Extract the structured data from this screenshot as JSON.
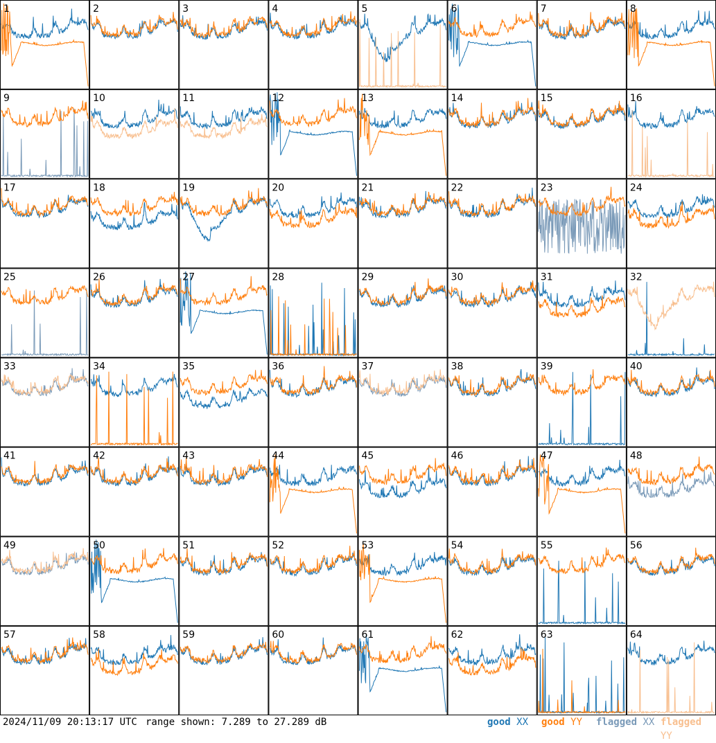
{
  "footer": {
    "timestamp": "2024/11/09 20:13:17 UTC",
    "range_text": "range shown: 7.289 to 27.289 dB"
  },
  "legend": [
    {
      "prefix": "good ",
      "pol": "XX",
      "color": "#1f77b4"
    },
    {
      "prefix": "good ",
      "pol": "YY",
      "color": "#ff7f0e"
    },
    {
      "prefix": "flagged ",
      "pol": "XX",
      "color": "#7a9ab8"
    },
    {
      "prefix": "flagged ",
      "pol": "YY",
      "color": "#f8bf8f"
    }
  ],
  "colors": {
    "good_xx": "#1f77b4",
    "good_yy": "#ff7f0e",
    "flagged_xx": "#7a9ab8",
    "flagged_yy": "#f8bf8f"
  },
  "chart_data": {
    "type": "line",
    "layout": "8x8 small multiples",
    "ylim": [
      7.289,
      27.289
    ],
    "yunits": "dB",
    "panels": [
      {
        "id": "1",
        "xx": "good",
        "yy": "good",
        "shape": {
          "xx": "normal",
          "yy": "droop"
        }
      },
      {
        "id": "2",
        "xx": "good",
        "yy": "good",
        "shape": {
          "xx": "normal",
          "yy": "normal"
        }
      },
      {
        "id": "3",
        "xx": "good",
        "yy": "good",
        "shape": {
          "xx": "normal",
          "yy": "normal"
        }
      },
      {
        "id": "4",
        "xx": "good",
        "yy": "good",
        "shape": {
          "xx": "normal",
          "yy": "normal"
        }
      },
      {
        "id": "5",
        "xx": "good",
        "yy": "flagged",
        "shape": {
          "xx": "dip",
          "yy": "dead"
        }
      },
      {
        "id": "6",
        "xx": "good",
        "yy": "good",
        "shape": {
          "xx": "droop",
          "yy": "normal"
        }
      },
      {
        "id": "7",
        "xx": "good",
        "yy": "good",
        "shape": {
          "xx": "normal",
          "yy": "normal"
        }
      },
      {
        "id": "8",
        "xx": "good",
        "yy": "good",
        "shape": {
          "xx": "normal",
          "yy": "droop"
        }
      },
      {
        "id": "9",
        "xx": "flagged",
        "yy": "good",
        "shape": {
          "xx": "dead",
          "yy": "normal"
        }
      },
      {
        "id": "10",
        "xx": "good",
        "yy": "flagged",
        "shape": {
          "xx": "normal",
          "yy": "low"
        }
      },
      {
        "id": "11",
        "xx": "good",
        "yy": "flagged",
        "shape": {
          "xx": "normal",
          "yy": "low"
        }
      },
      {
        "id": "12",
        "xx": "good",
        "yy": "good",
        "shape": {
          "xx": "droop",
          "yy": "normal"
        }
      },
      {
        "id": "13",
        "xx": "good",
        "yy": "good",
        "shape": {
          "xx": "normal",
          "yy": "droop"
        }
      },
      {
        "id": "14",
        "xx": "good",
        "yy": "good",
        "shape": {
          "xx": "normal",
          "yy": "normal"
        }
      },
      {
        "id": "15",
        "xx": "good",
        "yy": "good",
        "shape": {
          "xx": "normal",
          "yy": "normal"
        }
      },
      {
        "id": "16",
        "xx": "good",
        "yy": "flagged",
        "shape": {
          "xx": "normal",
          "yy": "dead"
        }
      },
      {
        "id": "17",
        "xx": "good",
        "yy": "good",
        "shape": {
          "xx": "normal",
          "yy": "normal"
        }
      },
      {
        "id": "18",
        "xx": "good",
        "yy": "good",
        "shape": {
          "xx": "low",
          "yy": "normal"
        }
      },
      {
        "id": "19",
        "xx": "good",
        "yy": "good",
        "shape": {
          "xx": "dip",
          "yy": "normal"
        }
      },
      {
        "id": "20",
        "xx": "good",
        "yy": "good",
        "shape": {
          "xx": "normal",
          "yy": "low"
        }
      },
      {
        "id": "21",
        "xx": "good",
        "yy": "good",
        "shape": {
          "xx": "normal",
          "yy": "normal"
        }
      },
      {
        "id": "22",
        "xx": "good",
        "yy": "good",
        "shape": {
          "xx": "normal",
          "yy": "normal"
        }
      },
      {
        "id": "23",
        "xx": "flagged",
        "yy": "good",
        "shape": {
          "xx": "noise",
          "yy": "normal"
        }
      },
      {
        "id": "24",
        "xx": "good",
        "yy": "good",
        "shape": {
          "xx": "normal",
          "yy": "low"
        }
      },
      {
        "id": "25",
        "xx": "flagged",
        "yy": "good",
        "shape": {
          "xx": "dead",
          "yy": "normal"
        }
      },
      {
        "id": "26",
        "xx": "good",
        "yy": "good",
        "shape": {
          "xx": "normal",
          "yy": "normal"
        }
      },
      {
        "id": "27",
        "xx": "good",
        "yy": "good",
        "shape": {
          "xx": "droop",
          "yy": "normal"
        }
      },
      {
        "id": "28",
        "xx": "good",
        "yy": "good",
        "shape": {
          "xx": "dead",
          "yy": "dead"
        }
      },
      {
        "id": "29",
        "xx": "good",
        "yy": "good",
        "shape": {
          "xx": "normal",
          "yy": "normal"
        }
      },
      {
        "id": "30",
        "xx": "good",
        "yy": "good",
        "shape": {
          "xx": "normal",
          "yy": "normal"
        }
      },
      {
        "id": "31",
        "xx": "good",
        "yy": "good",
        "shape": {
          "xx": "normal",
          "yy": "low"
        }
      },
      {
        "id": "32",
        "xx": "good",
        "yy": "flagged",
        "shape": {
          "xx": "dead",
          "yy": "dip"
        }
      },
      {
        "id": "33",
        "xx": "flagged",
        "yy": "flagged",
        "shape": {
          "xx": "normal",
          "yy": "normal"
        }
      },
      {
        "id": "34",
        "xx": "good",
        "yy": "good",
        "shape": {
          "xx": "normal",
          "yy": "dead"
        }
      },
      {
        "id": "35",
        "xx": "good",
        "yy": "good",
        "shape": {
          "xx": "low",
          "yy": "normal"
        }
      },
      {
        "id": "36",
        "xx": "good",
        "yy": "good",
        "shape": {
          "xx": "normal",
          "yy": "normal"
        }
      },
      {
        "id": "37",
        "xx": "flagged",
        "yy": "flagged",
        "shape": {
          "xx": "normal",
          "yy": "normal"
        }
      },
      {
        "id": "38",
        "xx": "good",
        "yy": "good",
        "shape": {
          "xx": "normal",
          "yy": "normal"
        }
      },
      {
        "id": "39",
        "xx": "good",
        "yy": "good",
        "shape": {
          "xx": "dead",
          "yy": "normal"
        }
      },
      {
        "id": "40",
        "xx": "good",
        "yy": "good",
        "shape": {
          "xx": "normal",
          "yy": "normal"
        }
      },
      {
        "id": "41",
        "xx": "good",
        "yy": "good",
        "shape": {
          "xx": "normal",
          "yy": "normal"
        }
      },
      {
        "id": "42",
        "xx": "good",
        "yy": "good",
        "shape": {
          "xx": "normal",
          "yy": "normal"
        }
      },
      {
        "id": "43",
        "xx": "good",
        "yy": "good",
        "shape": {
          "xx": "normal",
          "yy": "normal"
        }
      },
      {
        "id": "44",
        "xx": "good",
        "yy": "good",
        "shape": {
          "xx": "normal",
          "yy": "droop"
        }
      },
      {
        "id": "45",
        "xx": "good",
        "yy": "good",
        "shape": {
          "xx": "low",
          "yy": "normal"
        }
      },
      {
        "id": "46",
        "xx": "good",
        "yy": "good",
        "shape": {
          "xx": "normal",
          "yy": "normal"
        }
      },
      {
        "id": "47",
        "xx": "good",
        "yy": "good",
        "shape": {
          "xx": "normal",
          "yy": "droop"
        }
      },
      {
        "id": "48",
        "xx": "flagged",
        "yy": "good",
        "shape": {
          "xx": "low",
          "yy": "normal"
        }
      },
      {
        "id": "49",
        "xx": "flagged",
        "yy": "flagged",
        "shape": {
          "xx": "normal",
          "yy": "normal"
        }
      },
      {
        "id": "50",
        "xx": "good",
        "yy": "good",
        "shape": {
          "xx": "droop",
          "yy": "normal"
        }
      },
      {
        "id": "51",
        "xx": "good",
        "yy": "good",
        "shape": {
          "xx": "normal",
          "yy": "normal"
        }
      },
      {
        "id": "52",
        "xx": "good",
        "yy": "good",
        "shape": {
          "xx": "normal",
          "yy": "normal"
        }
      },
      {
        "id": "53",
        "xx": "good",
        "yy": "good",
        "shape": {
          "xx": "normal",
          "yy": "droop"
        }
      },
      {
        "id": "54",
        "xx": "good",
        "yy": "good",
        "shape": {
          "xx": "normal",
          "yy": "normal"
        }
      },
      {
        "id": "55",
        "xx": "good",
        "yy": "good",
        "shape": {
          "xx": "dead",
          "yy": "normal"
        }
      },
      {
        "id": "56",
        "xx": "good",
        "yy": "good",
        "shape": {
          "xx": "normal",
          "yy": "normal"
        }
      },
      {
        "id": "57",
        "xx": "good",
        "yy": "good",
        "shape": {
          "xx": "normal",
          "yy": "normal"
        }
      },
      {
        "id": "58",
        "xx": "good",
        "yy": "good",
        "shape": {
          "xx": "normal",
          "yy": "low"
        }
      },
      {
        "id": "59",
        "xx": "good",
        "yy": "good",
        "shape": {
          "xx": "normal",
          "yy": "normal"
        }
      },
      {
        "id": "60",
        "xx": "good",
        "yy": "good",
        "shape": {
          "xx": "normal",
          "yy": "normal"
        }
      },
      {
        "id": "61",
        "xx": "good",
        "yy": "good",
        "shape": {
          "xx": "droop",
          "yy": "normal"
        }
      },
      {
        "id": "62",
        "xx": "good",
        "yy": "good",
        "shape": {
          "xx": "normal",
          "yy": "low"
        }
      },
      {
        "id": "63",
        "xx": "good",
        "yy": "good",
        "shape": {
          "xx": "dead",
          "yy": "dead"
        }
      },
      {
        "id": "64",
        "xx": "good",
        "yy": "flagged",
        "shape": {
          "xx": "normal",
          "yy": "dead"
        }
      }
    ]
  }
}
